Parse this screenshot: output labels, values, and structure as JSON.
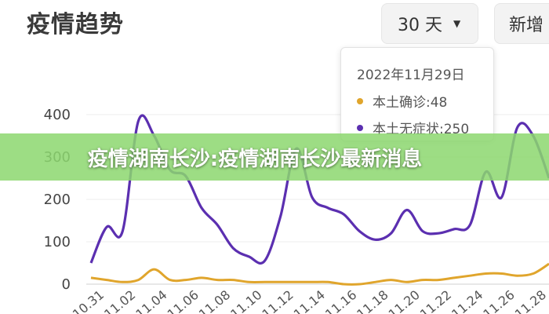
{
  "header": {
    "title": "疫情趋势",
    "range_label": "30 天",
    "new_label": "新增"
  },
  "tooltip": {
    "date": "2022年11月29日",
    "rows": [
      {
        "label": "本土确诊:48",
        "color": "#e0a52c"
      },
      {
        "label": "本土无症状:250",
        "color": "#5b2fb0"
      }
    ]
  },
  "banner": {
    "text": "疫情湖南长沙:疫情湖南长沙最新消息"
  },
  "icons": {
    "range_caret": "caret-down-icon"
  },
  "colors": {
    "confirmed": "#e0a52c",
    "asymptomatic": "#5b2fb0",
    "banner": "#8cd76e"
  },
  "chart_data": {
    "type": "line",
    "ylim": [
      0,
      400
    ],
    "y_ticks": [
      "0",
      "100",
      "200",
      "300",
      "400"
    ],
    "x_tick_labels": [
      "10.31",
      "11.02",
      "11.04",
      "11.06",
      "11.08",
      "11.10",
      "11.12",
      "11.14",
      "11.16",
      "11.18",
      "11.20",
      "11.22",
      "11.24",
      "11.26",
      "11.28"
    ],
    "x": [
      "10.31",
      "11.01",
      "11.02",
      "11.03",
      "11.04",
      "11.05",
      "11.06",
      "11.07",
      "11.08",
      "11.09",
      "11.10",
      "11.11",
      "11.12",
      "11.13",
      "11.14",
      "11.15",
      "11.16",
      "11.17",
      "11.18",
      "11.19",
      "11.20",
      "11.21",
      "11.22",
      "11.23",
      "11.24",
      "11.25",
      "11.26",
      "11.27",
      "11.28",
      "11.29"
    ],
    "series": [
      {
        "key": "asymptomatic",
        "values": [
          50,
          135,
          125,
          385,
          350,
          270,
          255,
          180,
          140,
          85,
          65,
          55,
          160,
          320,
          205,
          180,
          165,
          125,
          105,
          120,
          175,
          125,
          120,
          130,
          140,
          265,
          205,
          370,
          350,
          250
        ]
      },
      {
        "key": "confirmed",
        "values": [
          15,
          10,
          5,
          10,
          35,
          10,
          10,
          15,
          10,
          10,
          5,
          5,
          5,
          5,
          5,
          5,
          0,
          0,
          5,
          10,
          5,
          10,
          10,
          15,
          20,
          25,
          25,
          20,
          25,
          48
        ]
      }
    ]
  }
}
